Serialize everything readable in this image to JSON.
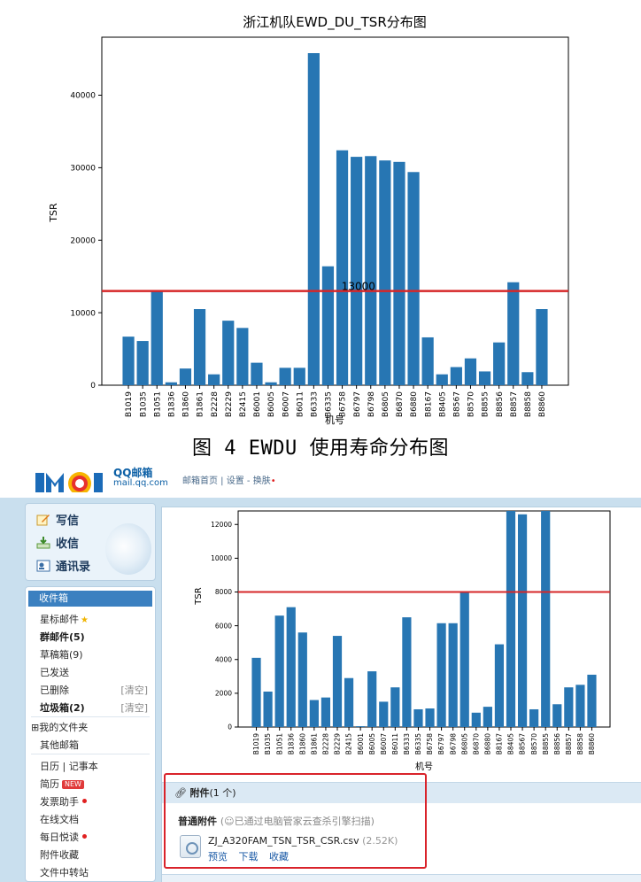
{
  "figure_caption": "图 4 EWDU 使用寿命分布图",
  "colors": {
    "bar": "#2776b3",
    "threshold": "#d62728",
    "mail_bar": "#3b80c0"
  },
  "chart_data": [
    {
      "type": "bar",
      "title": "浙江机队EWD_DU_TSR分布图",
      "xlabel": "机号",
      "ylabel": "TSR",
      "ylim": [
        0,
        48000
      ],
      "yticks": [
        0,
        10000,
        20000,
        30000,
        40000
      ],
      "categories": [
        "B1019",
        "B1035",
        "B1051",
        "B1836",
        "B1860",
        "B1861",
        "B2228",
        "B2229",
        "B2415",
        "B6001",
        "B6005",
        "B6007",
        "B6011",
        "B6333",
        "B6335",
        "B6758",
        "B6797",
        "B6798",
        "B6805",
        "B6870",
        "B6880",
        "B8167",
        "B8405",
        "B8567",
        "B8570",
        "B8855",
        "B8856",
        "B8857",
        "B8858",
        "B8860"
      ],
      "values": [
        6700,
        6100,
        12900,
        400,
        2300,
        10500,
        1500,
        8900,
        7900,
        3100,
        400,
        2400,
        2400,
        45800,
        16400,
        32400,
        31500,
        31600,
        31000,
        30800,
        29400,
        6600,
        1500,
        2500,
        3700,
        1900,
        5900,
        14200,
        1800,
        10500
      ],
      "threshold": 13000,
      "threshold_label": "13000",
      "grid": false
    },
    {
      "type": "bar",
      "title": "",
      "xlabel": "机号",
      "ylabel": "TSR",
      "ylim": [
        0,
        12800
      ],
      "yticks": [
        0,
        2000,
        4000,
        6000,
        8000,
        10000,
        12000
      ],
      "categories": [
        "B1019",
        "B1035",
        "B1051",
        "B1836",
        "B1860",
        "B1861",
        "B2228",
        "B2229",
        "B2415",
        "B6001",
        "B6005",
        "B6007",
        "B6011",
        "B6333",
        "B6335",
        "B6758",
        "B6797",
        "B6798",
        "B6805",
        "B6870",
        "B6880",
        "B8167",
        "B8405",
        "B8567",
        "B8570",
        "B8855",
        "B8856",
        "B8857",
        "B8858",
        "B8860"
      ],
      "values": [
        4100,
        2100,
        6600,
        7100,
        5600,
        1600,
        1750,
        5400,
        2900,
        50,
        3300,
        1500,
        2350,
        6500,
        1050,
        1100,
        6150,
        6150,
        8000,
        850,
        1200,
        4900,
        12800,
        12600,
        1050,
        12800,
        1350,
        2350,
        2500,
        3100
      ],
      "threshold": 8000,
      "grid": false
    }
  ],
  "mail": {
    "logo_text": "QQ邮箱",
    "logo_domain": "mail.qq.com",
    "top_links": "邮箱首页 | 设置 - 换肤",
    "compose": "写信",
    "receive": "收信",
    "contacts": "通讯录",
    "inbox": "收件箱",
    "starred": "星标邮件",
    "group": "群邮件(5)",
    "drafts": "草稿箱(9)",
    "sent": "已发送",
    "deleted": "已删除",
    "clear1": "[清空]",
    "spam": "垃圾箱(2)",
    "clear2": "[清空]",
    "my_folders": "⊞我的文件夹",
    "other_mailbox": "其他邮箱",
    "calendar": "日历 | 记事本",
    "resume": "简历",
    "new_badge": "NEW",
    "invoice": "发票助手",
    "online_docs": "在线文档",
    "daily": "每日悦读",
    "attachment_fav": "附件收藏",
    "transfer": "文件中转站",
    "attach_title": "附件",
    "attach_count": "(1 个)",
    "normal_attach": "普通附件",
    "scan_note": "(☺已通过电脑管家云查杀引擎扫描)",
    "file_name": "ZJ_A320FAM_TSN_TSR_CSR.csv",
    "file_size": "(2.52K)",
    "preview": "预览",
    "download": "下载",
    "collect": "收藏"
  }
}
